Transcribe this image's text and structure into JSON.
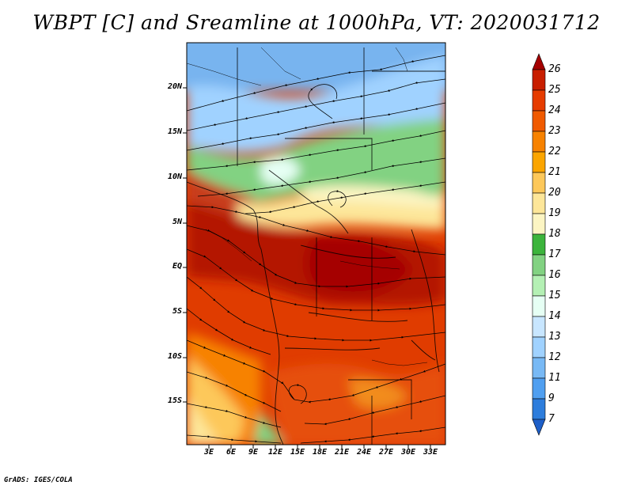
{
  "title": "WBPT [C] and Sreamline at 1000hPa, VT: 2020031712",
  "lat_labels": [
    "20N",
    "15N",
    "10N",
    "5N",
    "EQ",
    "5S",
    "10S",
    "15S"
  ],
  "lon_labels": [
    "3E",
    "6E",
    "9E",
    "12E",
    "15E",
    "18E",
    "21E",
    "24E",
    "27E",
    "30E",
    "33E"
  ],
  "colorbar": {
    "labels": [
      "26",
      "25",
      "24",
      "23",
      "22",
      "21",
      "20",
      "19",
      "18",
      "17",
      "16",
      "15",
      "14",
      "13",
      "12",
      "11",
      "9",
      "7"
    ],
    "colors": [
      "#a50000",
      "#c81e00",
      "#e63c00",
      "#f05a00",
      "#f78200",
      "#fba500",
      "#fdc85a",
      "#fde699",
      "#fcf5c3",
      "#3cb43c",
      "#82d282",
      "#b4f0b4",
      "#e6fff4",
      "#c8e6ff",
      "#a0d2ff",
      "#78b9f5",
      "#509ff0",
      "#2d7ddc",
      "#1e5fc8"
    ]
  },
  "credit": "GrADS: IGES/COLA",
  "icons": {
    "map": "africa-wbpt-streamline-map",
    "colorbar": "temperature-colorbar"
  }
}
